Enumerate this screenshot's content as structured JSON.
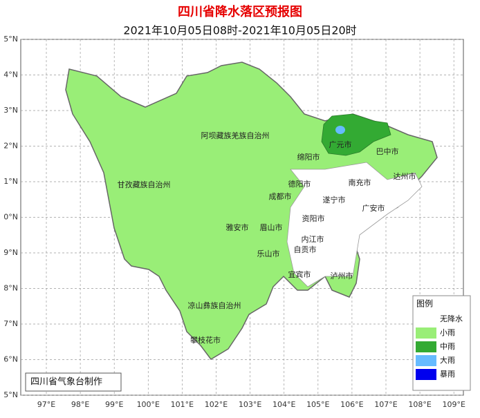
{
  "title": "四川省降水落区预报图",
  "subtitle": "2021年10月05日08时-2021年10月05日20时",
  "lat_labels": [
    "5°N",
    "4°N",
    "3°N",
    "2°N",
    "1°N",
    "0°N",
    "9°N",
    "8°N",
    "7°N",
    "6°N",
    "5°N"
  ],
  "lon_labels": [
    "97°E",
    "98°E",
    "99°E",
    "100°E",
    "101°E",
    "102°E",
    "103°E",
    "104°E",
    "105°E",
    "106°E",
    "107°E",
    "108°E",
    "109°E"
  ],
  "places": [
    "阿坝藏族羌族自治州",
    "广元市",
    "巴中市",
    "绵阳市",
    "达州市",
    "南充市",
    "德阳市",
    "甘孜藏族自治州",
    "成都市",
    "遂宁市",
    "广安市",
    "资阳市",
    "雅安市",
    "眉山市",
    "内江市",
    "自贡市",
    "乐山市",
    "宜宾市",
    "泸州市",
    "凉山彝族自治州",
    "攀枝花市"
  ],
  "legend": {
    "title": "图例",
    "items": [
      {
        "label": "无降水",
        "color": "#ffffff"
      },
      {
        "label": "小雨",
        "color": "#99ee77"
      },
      {
        "label": "中雨",
        "color": "#33aa33"
      },
      {
        "label": "大雨",
        "color": "#66bbff"
      },
      {
        "label": "暴雨",
        "color": "#0000ee"
      }
    ]
  },
  "footer": "四川省气象台制作"
}
